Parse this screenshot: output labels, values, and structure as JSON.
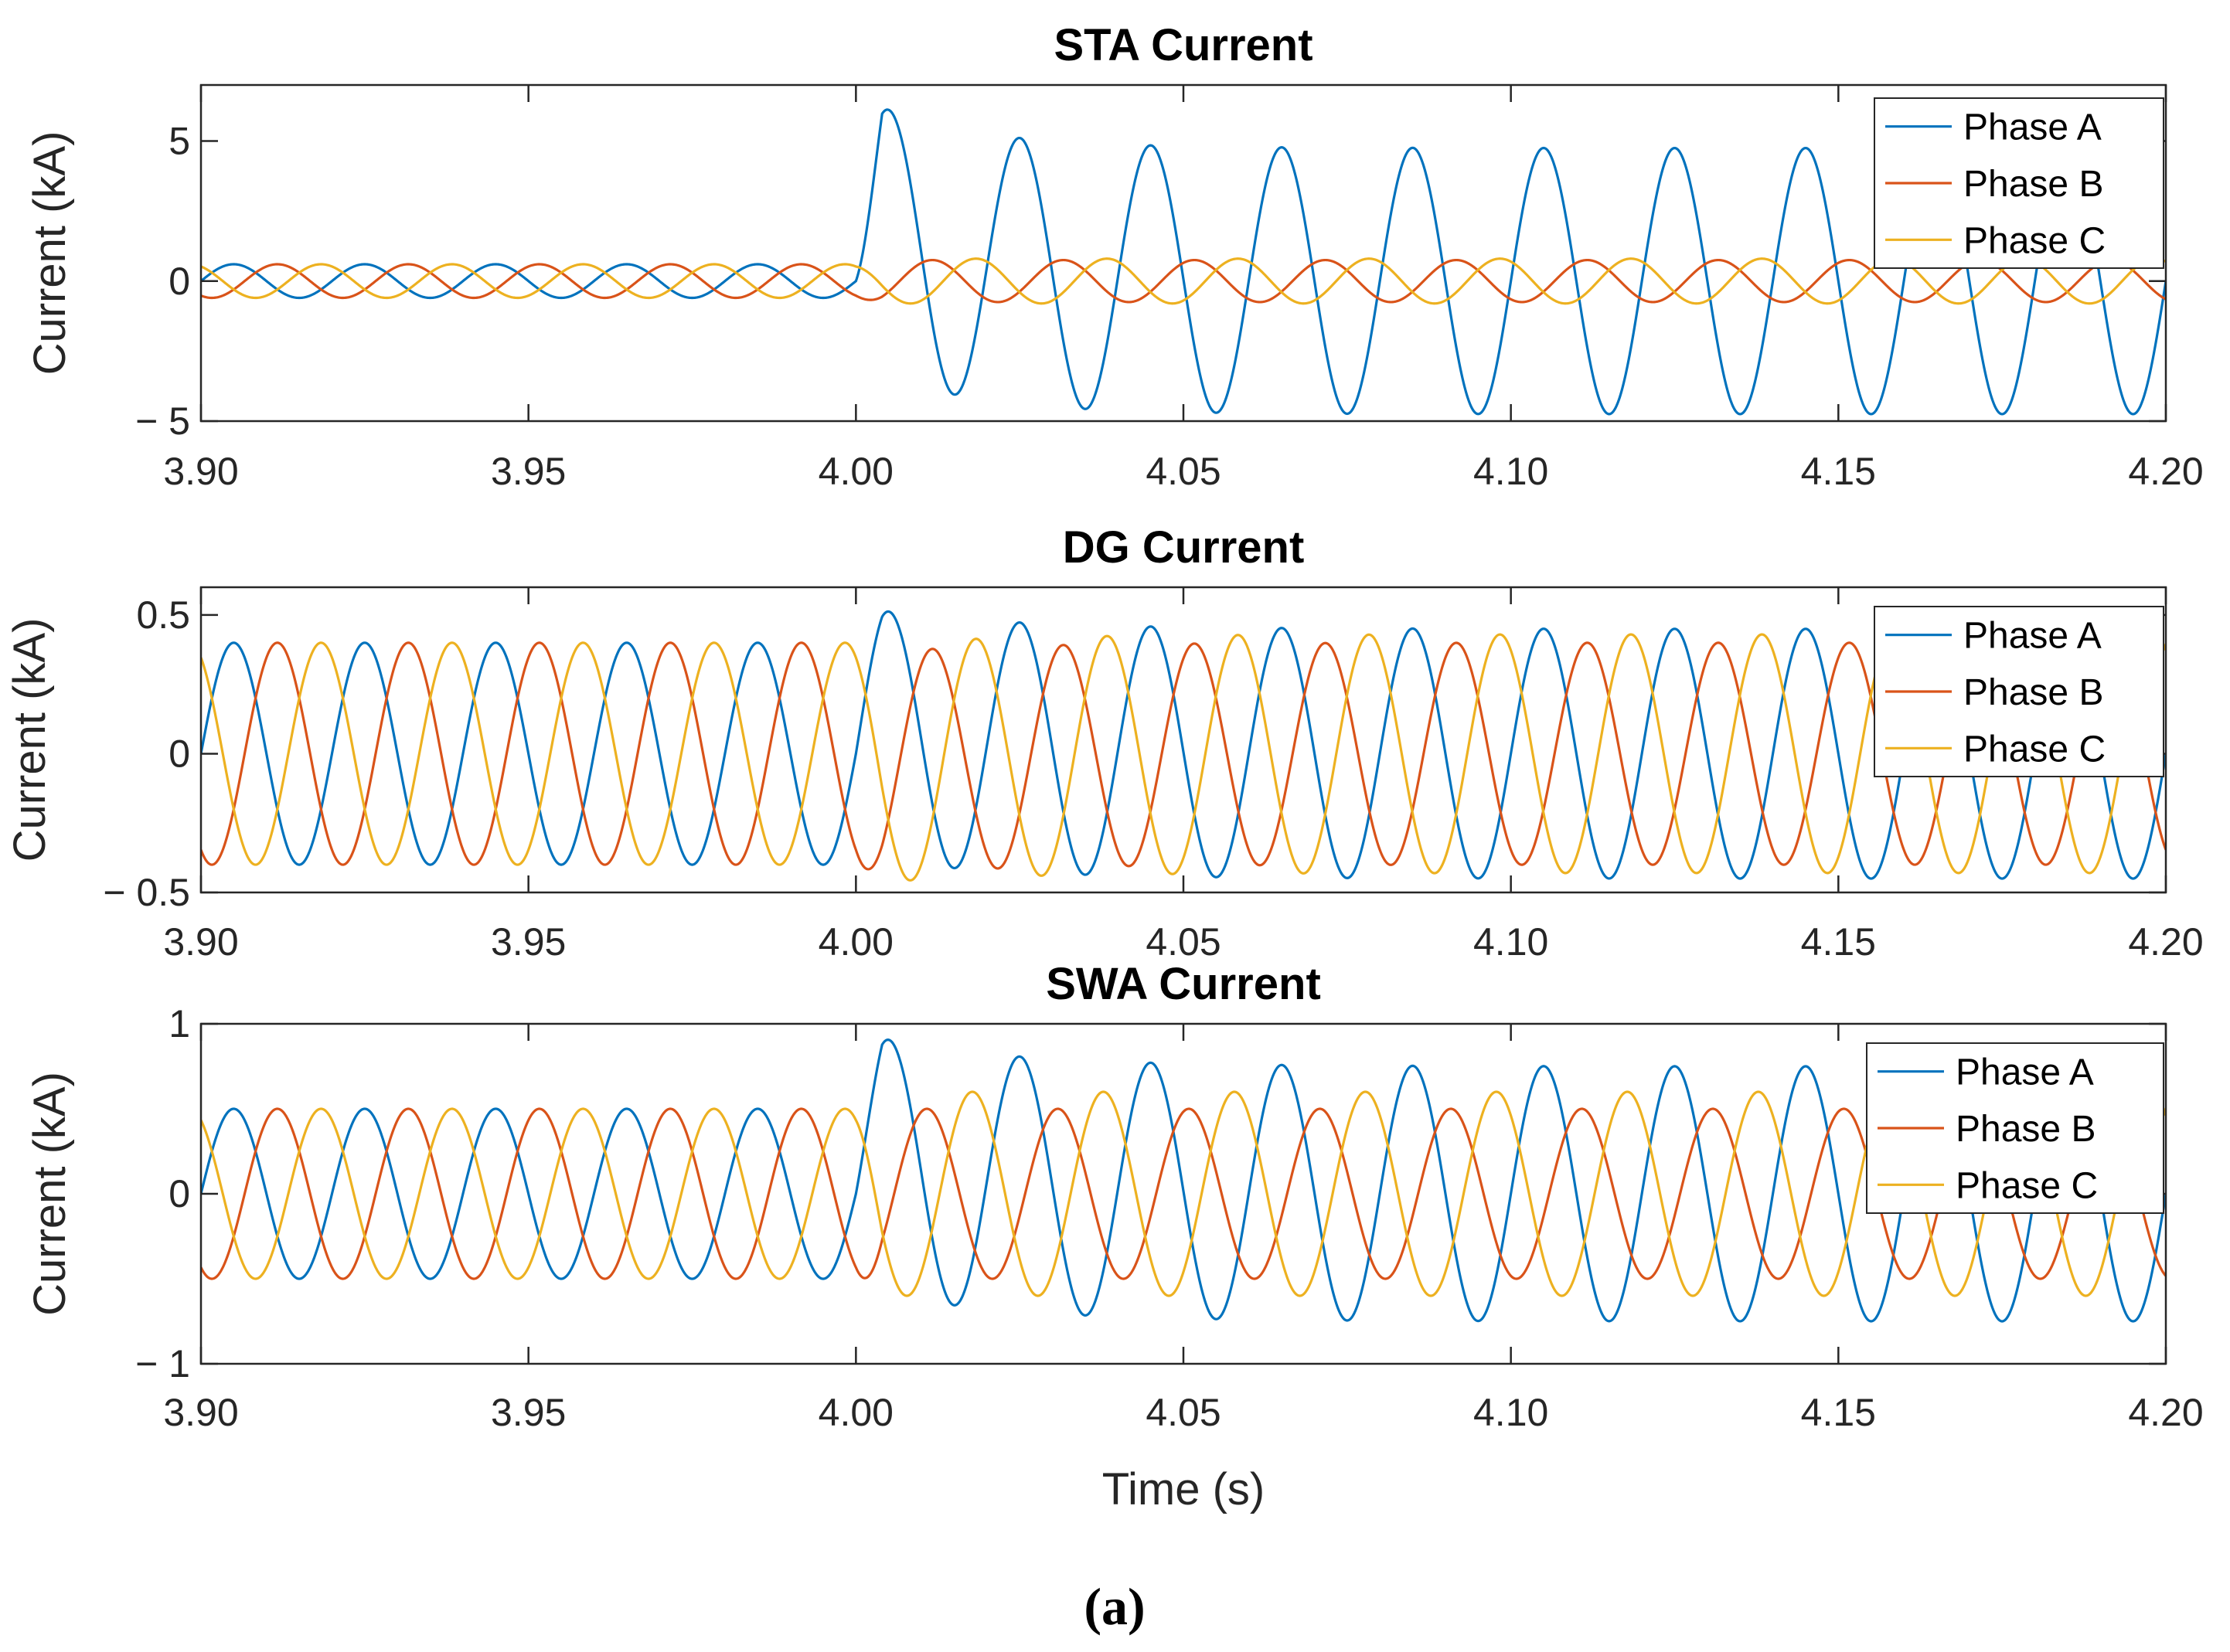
{
  "caption": "(a)",
  "colors": {
    "phase_a": "#0072BD",
    "phase_b": "#D95319",
    "phase_c": "#EDB120"
  },
  "chart_data": [
    {
      "type": "line",
      "title": "STA Current",
      "xlabel": "",
      "ylabel": "Current (kA)",
      "xlim": [
        3.9,
        4.2
      ],
      "ylim": [
        -5,
        7
      ],
      "xticks": [
        3.9,
        3.95,
        4.0,
        4.05,
        4.1,
        4.15,
        4.2
      ],
      "xtick_labels": [
        "3.90",
        "3.95",
        "4.00",
        "4.05",
        "4.10",
        "4.15",
        "4.20"
      ],
      "yticks": [
        -5,
        0,
        5
      ],
      "ytick_labels": [
        "− 5",
        "0",
        "5"
      ],
      "legend_position": "top-right",
      "fault_time": 4.0,
      "frequency_hz": 50,
      "series": [
        {
          "name": "Phase A",
          "phase_deg": 0,
          "pre_amplitude": 0.6,
          "post_amplitude": 4.75,
          "dc_offset": 1.9,
          "dc_tau": 0.015,
          "post_phase_deg": 0
        },
        {
          "name": "Phase B",
          "phase_deg": -120,
          "pre_amplitude": 0.6,
          "post_amplitude": 0.75,
          "dc_offset": 0,
          "dc_tau": 0.02,
          "post_phase_deg": -120
        },
        {
          "name": "Phase C",
          "phase_deg": 120,
          "pre_amplitude": 0.6,
          "post_amplitude": 0.8,
          "dc_offset": 0,
          "dc_tau": 0.02,
          "post_phase_deg": 120
        }
      ]
    },
    {
      "type": "line",
      "title": "DG Current",
      "xlabel": "",
      "ylabel": "Current (kA)",
      "xlim": [
        3.9,
        4.2
      ],
      "ylim": [
        -0.5,
        0.6
      ],
      "xticks": [
        3.9,
        3.95,
        4.0,
        4.05,
        4.1,
        4.15,
        4.2
      ],
      "xtick_labels": [
        "3.90",
        "3.95",
        "4.00",
        "4.05",
        "4.10",
        "4.15",
        "4.20"
      ],
      "yticks": [
        -0.5,
        0,
        0.5
      ],
      "ytick_labels": [
        "− 0.5",
        "0",
        "0.5"
      ],
      "legend_position": "top-right",
      "fault_time": 4.0,
      "frequency_hz": 50,
      "series": [
        {
          "name": "Phase A",
          "phase_deg": 0,
          "pre_amplitude": 0.4,
          "post_amplitude": 0.45,
          "dc_offset": 0.08,
          "dc_tau": 0.02,
          "post_phase_deg": 0
        },
        {
          "name": "Phase B",
          "phase_deg": -120,
          "pre_amplitude": 0.4,
          "post_amplitude": 0.4,
          "dc_offset": -0.04,
          "dc_tau": 0.02,
          "post_phase_deg": -120
        },
        {
          "name": "Phase C",
          "phase_deg": 120,
          "pre_amplitude": 0.4,
          "post_amplitude": 0.43,
          "dc_offset": -0.04,
          "dc_tau": 0.02,
          "post_phase_deg": 120
        }
      ]
    },
    {
      "type": "line",
      "title": "SWA Current",
      "xlabel": "Time (s)",
      "ylabel": "Current (kA)",
      "xlim": [
        3.9,
        4.2
      ],
      "ylim": [
        -1,
        1
      ],
      "xticks": [
        3.9,
        3.95,
        4.0,
        4.05,
        4.1,
        4.15,
        4.2
      ],
      "xtick_labels": [
        "3.90",
        "3.95",
        "4.00",
        "4.05",
        "4.10",
        "4.15",
        "4.20"
      ],
      "yticks": [
        -1,
        0,
        1
      ],
      "ytick_labels": [
        "− 1",
        "0",
        "1"
      ],
      "legend_position": "top-right",
      "fault_time": 4.0,
      "frequency_hz": 50,
      "series": [
        {
          "name": "Phase A",
          "phase_deg": 0,
          "pre_amplitude": 0.5,
          "post_amplitude": 0.75,
          "dc_offset": 0.2,
          "dc_tau": 0.02,
          "post_phase_deg": 0
        },
        {
          "name": "Phase B",
          "phase_deg": -120,
          "pre_amplitude": 0.5,
          "post_amplitude": 0.5,
          "dc_offset": 0,
          "dc_tau": 0.02,
          "post_phase_deg": -105
        },
        {
          "name": "Phase C",
          "phase_deg": 120,
          "pre_amplitude": 0.5,
          "post_amplitude": 0.6,
          "dc_offset": 0,
          "dc_tau": 0.02,
          "post_phase_deg": 130
        }
      ]
    }
  ]
}
